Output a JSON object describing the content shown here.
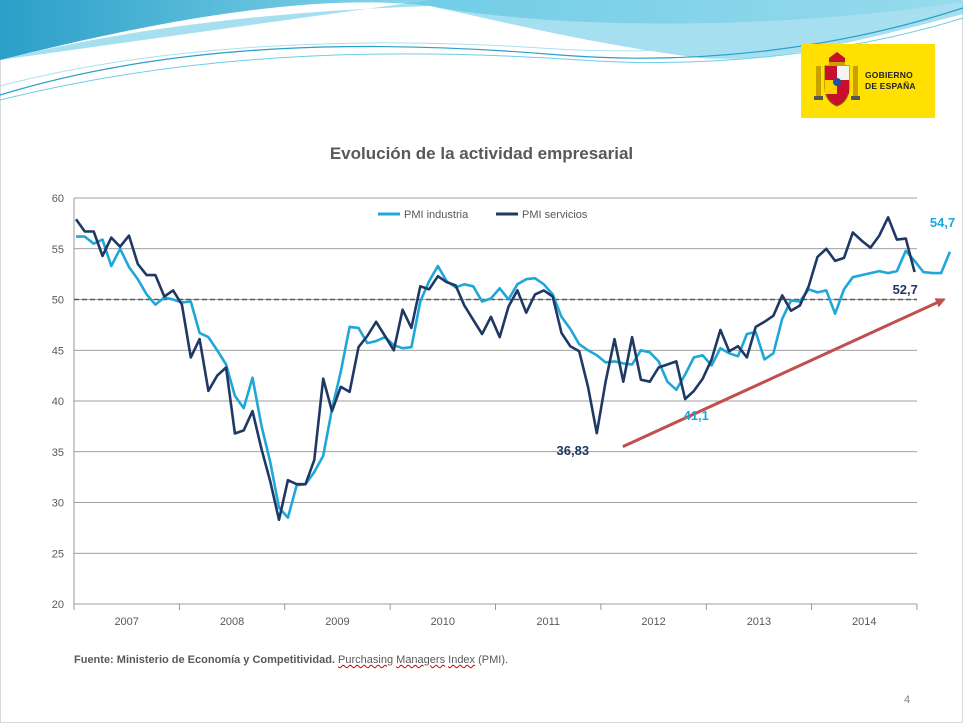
{
  "logo": {
    "line1": "GOBIERNO",
    "line2": "DE ESPAÑA"
  },
  "title": "Evolución de la actividad empresarial",
  "footer": {
    "source_label": "Fuente: Ministerio de Economía y Competitividad.",
    "source_text_1": "Purchasing",
    "source_text_2": "Managers",
    "source_text_3": "Index",
    "source_text_4": "(PMI)."
  },
  "page_number": "4",
  "colors": {
    "industria": "#1ea7d8",
    "servicios": "#1f3864",
    "arrow": "#c0504d",
    "reference": "#595959"
  },
  "chart_data": {
    "type": "line",
    "title": "Evolución de la actividad empresarial",
    "ylim": [
      20,
      60
    ],
    "yticks": [
      20,
      25,
      30,
      35,
      40,
      45,
      50,
      55,
      60
    ],
    "years": [
      "2007",
      "2008",
      "2009",
      "2010",
      "2011",
      "2012",
      "2013",
      "2014"
    ],
    "months_per_year": 12,
    "reference_line": 50,
    "series": [
      {
        "name": "PMI industria",
        "values": [
          56.2,
          56.2,
          55.5,
          55.9,
          53.3,
          55.0,
          53.2,
          52.0,
          50.5,
          49.5,
          50.2,
          50.0,
          49.7,
          49.8,
          46.7,
          46.3,
          45.0,
          43.6,
          40.5,
          39.3,
          42.3,
          37.6,
          34.0,
          29.5,
          28.5,
          31.7,
          31.8,
          33.0,
          34.6,
          39.2,
          42.9,
          47.3,
          47.2,
          45.7,
          45.9,
          46.3,
          45.5,
          45.2,
          45.3,
          49.8,
          51.8,
          53.3,
          51.8,
          51.2,
          51.5,
          51.3,
          49.8,
          50.1,
          51.1,
          50.0,
          51.5,
          52.0,
          52.1,
          51.5,
          50.5,
          48.3,
          47.1,
          45.6,
          45.0,
          44.5,
          43.8,
          43.9,
          43.7,
          43.6,
          45.0,
          44.8,
          43.9,
          41.9,
          41.1,
          42.6,
          44.3,
          44.5,
          43.5,
          45.2,
          44.7,
          44.4,
          46.6,
          46.8,
          44.1,
          44.7,
          48.1,
          49.9,
          49.8,
          51.0,
          50.7,
          50.9,
          48.6,
          51.0,
          52.2,
          52.4,
          52.6,
          52.8,
          52.6,
          52.8,
          54.8,
          53.8,
          52.7,
          52.6,
          52.6,
          54.7
        ]
      },
      {
        "name": "PMI servicios",
        "values": [
          57.9,
          56.7,
          56.7,
          54.3,
          56.1,
          55.2,
          56.3,
          53.5,
          52.4,
          52.4,
          50.3,
          50.9,
          49.5,
          44.3,
          46.1,
          41.0,
          42.5,
          43.3,
          36.8,
          37.1,
          39.0,
          35.3,
          32.1,
          28.3,
          32.2,
          31.8,
          31.8,
          34.2,
          42.2,
          39.0,
          41.4,
          40.9,
          45.3,
          46.4,
          47.8,
          46.4,
          45.0,
          49.0,
          47.2,
          51.3,
          51.0,
          52.3,
          51.7,
          51.4,
          49.4,
          48.0,
          46.6,
          48.3,
          46.3,
          49.3,
          50.9,
          48.7,
          50.5,
          50.9,
          50.3,
          46.7,
          45.4,
          44.9,
          41.4,
          36.83,
          41.9,
          46.1,
          41.9,
          46.3,
          42.1,
          41.9,
          43.3,
          43.6,
          43.9,
          40.2,
          41.0,
          42.2,
          44.1,
          47.0,
          44.9,
          45.4,
          44.3,
          47.3,
          47.8,
          48.4,
          50.4,
          48.9,
          49.4,
          51.3,
          54.2,
          55.0,
          53.8,
          54.1,
          56.6,
          55.8,
          55.1,
          56.3,
          58.1,
          55.9,
          56.0,
          52.7
        ]
      }
    ],
    "annotations": [
      {
        "text": "54,7",
        "series": "PMI industria",
        "value": 54.7
      },
      {
        "text": "52,7",
        "series": "PMI servicios",
        "value": 52.7
      },
      {
        "text": "41,1",
        "series": "PMI industria",
        "value": 41.1
      },
      {
        "text": "36,83",
        "series": "PMI servicios",
        "value": 36.83
      }
    ],
    "arrow": {
      "from_value": 35.5,
      "to_value": 50.0
    },
    "legend": {
      "position": "top-center",
      "entries": [
        "PMI industria",
        "PMI servicios"
      ]
    }
  }
}
